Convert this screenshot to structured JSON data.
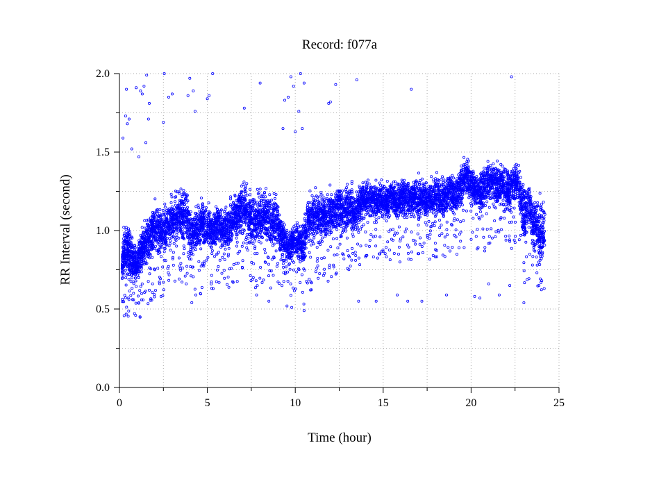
{
  "chart_data": {
    "type": "scatter",
    "title": "Record:  f077a",
    "xlabel": "Time (hour)",
    "ylabel": "RR Interval (second)",
    "xlim": [
      0,
      25
    ],
    "ylim": [
      0.0,
      2.0
    ],
    "x_ticks": [
      "0",
      "5",
      "10",
      "15",
      "20",
      "25"
    ],
    "y_ticks": [
      "0.0",
      "0.5",
      "1.0",
      "1.5",
      "2.0"
    ],
    "grid": true,
    "marker_color": "#0000ff",
    "series": [
      {
        "values": [
          [
            0.15,
            0.8,
            0.06
          ],
          [
            0.35,
            0.88,
            0.1
          ],
          [
            0.55,
            0.86,
            0.09
          ],
          [
            0.8,
            0.8,
            0.06
          ],
          [
            1.0,
            0.78,
            0.06
          ],
          [
            1.25,
            0.86,
            0.07
          ],
          [
            1.5,
            0.92,
            0.08
          ],
          [
            1.8,
            0.98,
            0.09
          ],
          [
            2.0,
            1.02,
            0.09
          ],
          [
            2.3,
            0.98,
            0.08
          ],
          [
            2.6,
            1.0,
            0.08
          ],
          [
            2.9,
            1.05,
            0.08
          ],
          [
            3.2,
            1.08,
            0.08
          ],
          [
            3.5,
            1.1,
            0.09
          ],
          [
            3.8,
            1.12,
            0.09
          ],
          [
            4.1,
            0.95,
            0.08
          ],
          [
            4.4,
            1.0,
            0.08
          ],
          [
            4.7,
            1.05,
            0.08
          ],
          [
            5.0,
            1.02,
            0.07
          ],
          [
            5.3,
            1.0,
            0.07
          ],
          [
            5.6,
            1.05,
            0.07
          ],
          [
            5.9,
            1.0,
            0.07
          ],
          [
            6.2,
            1.02,
            0.07
          ],
          [
            6.5,
            1.08,
            0.08
          ],
          [
            6.8,
            1.12,
            0.08
          ],
          [
            7.1,
            1.15,
            0.09
          ],
          [
            7.4,
            1.08,
            0.09
          ],
          [
            7.7,
            1.05,
            0.09
          ],
          [
            8.0,
            1.08,
            0.09
          ],
          [
            8.3,
            1.1,
            0.08
          ],
          [
            8.6,
            1.05,
            0.09
          ],
          [
            8.9,
            1.08,
            0.09
          ],
          [
            9.2,
            0.95,
            0.07
          ],
          [
            9.5,
            0.9,
            0.07
          ],
          [
            9.8,
            0.92,
            0.06
          ],
          [
            10.1,
            0.95,
            0.06
          ],
          [
            10.4,
            0.9,
            0.07
          ],
          [
            10.7,
            1.05,
            0.09
          ],
          [
            11.0,
            1.08,
            0.08
          ],
          [
            11.3,
            1.1,
            0.08
          ],
          [
            11.6,
            1.08,
            0.08
          ],
          [
            11.9,
            1.1,
            0.08
          ],
          [
            12.2,
            1.12,
            0.08
          ],
          [
            12.5,
            1.15,
            0.08
          ],
          [
            12.8,
            1.12,
            0.08
          ],
          [
            13.1,
            1.15,
            0.08
          ],
          [
            13.4,
            1.1,
            0.08
          ],
          [
            13.7,
            1.18,
            0.07
          ],
          [
            14.0,
            1.2,
            0.06
          ],
          [
            14.3,
            1.2,
            0.06
          ],
          [
            14.6,
            1.18,
            0.06
          ],
          [
            14.9,
            1.2,
            0.06
          ],
          [
            15.2,
            1.18,
            0.06
          ],
          [
            15.5,
            1.22,
            0.06
          ],
          [
            15.8,
            1.18,
            0.07
          ],
          [
            16.1,
            1.22,
            0.06
          ],
          [
            16.4,
            1.2,
            0.07
          ],
          [
            16.7,
            1.22,
            0.06
          ],
          [
            17.0,
            1.2,
            0.07
          ],
          [
            17.3,
            1.22,
            0.06
          ],
          [
            17.6,
            1.18,
            0.07
          ],
          [
            17.9,
            1.2,
            0.07
          ],
          [
            18.2,
            1.22,
            0.07
          ],
          [
            18.5,
            1.2,
            0.07
          ],
          [
            18.8,
            1.25,
            0.07
          ],
          [
            19.1,
            1.22,
            0.07
          ],
          [
            19.4,
            1.28,
            0.07
          ],
          [
            19.7,
            1.35,
            0.06
          ],
          [
            20.0,
            1.3,
            0.06
          ],
          [
            20.3,
            1.25,
            0.06
          ],
          [
            20.6,
            1.25,
            0.07
          ],
          [
            20.9,
            1.3,
            0.07
          ],
          [
            21.2,
            1.32,
            0.06
          ],
          [
            21.5,
            1.28,
            0.07
          ],
          [
            21.8,
            1.3,
            0.07
          ],
          [
            22.1,
            1.25,
            0.08
          ],
          [
            22.4,
            1.3,
            0.07
          ],
          [
            22.7,
            1.3,
            0.07
          ],
          [
            23.0,
            1.1,
            0.1
          ],
          [
            23.3,
            1.15,
            0.09
          ],
          [
            23.6,
            1.05,
            0.09
          ],
          [
            23.9,
            1.0,
            0.1
          ]
        ],
        "outliers": [
          [
            0.2,
            1.59
          ],
          [
            0.35,
            1.73
          ],
          [
            0.4,
            1.9
          ],
          [
            0.45,
            1.68
          ],
          [
            0.55,
            1.71
          ],
          [
            0.7,
            1.52
          ],
          [
            0.95,
            1.91
          ],
          [
            1.1,
            1.47
          ],
          [
            1.2,
            1.89
          ],
          [
            1.3,
            1.87
          ],
          [
            1.4,
            1.92
          ],
          [
            1.5,
            1.56
          ],
          [
            1.55,
            1.99
          ],
          [
            1.65,
            1.71
          ],
          [
            1.7,
            1.81
          ],
          [
            2.5,
            1.69
          ],
          [
            2.55,
            2.0
          ],
          [
            2.8,
            1.85
          ],
          [
            3.0,
            1.87
          ],
          [
            3.9,
            1.86
          ],
          [
            4.0,
            1.97
          ],
          [
            4.2,
            1.89
          ],
          [
            4.3,
            1.76
          ],
          [
            5.0,
            1.84
          ],
          [
            5.1,
            1.86
          ],
          [
            5.3,
            2.0
          ],
          [
            7.1,
            1.78
          ],
          [
            8.0,
            1.94
          ],
          [
            9.3,
            1.65
          ],
          [
            9.4,
            1.83
          ],
          [
            9.6,
            1.85
          ],
          [
            9.75,
            1.98
          ],
          [
            9.9,
            1.92
          ],
          [
            10.0,
            1.63
          ],
          [
            10.2,
            1.76
          ],
          [
            10.3,
            2.0
          ],
          [
            10.5,
            1.94
          ],
          [
            10.4,
            1.65
          ],
          [
            11.9,
            1.81
          ],
          [
            12.0,
            1.82
          ],
          [
            12.3,
            1.93
          ],
          [
            13.5,
            1.96
          ],
          [
            16.6,
            1.9
          ],
          [
            22.3,
            1.98
          ],
          [
            0.5,
            0.57
          ],
          [
            0.8,
            0.6
          ],
          [
            1.1,
            0.54
          ],
          [
            1.7,
            0.62
          ],
          [
            2.5,
            0.67
          ],
          [
            3.8,
            0.66
          ],
          [
            7.8,
            0.59
          ],
          [
            8.5,
            0.55
          ],
          [
            9.8,
            0.51
          ],
          [
            10.5,
            0.49
          ],
          [
            13.6,
            0.55
          ],
          [
            14.6,
            0.55
          ],
          [
            15.8,
            0.59
          ],
          [
            16.4,
            0.55
          ],
          [
            17.2,
            0.55
          ],
          [
            18.6,
            0.59
          ],
          [
            20.2,
            0.58
          ],
          [
            20.5,
            0.57
          ],
          [
            21.0,
            0.66
          ],
          [
            21.6,
            0.59
          ],
          [
            22.2,
            0.65
          ],
          [
            23.0,
            0.54
          ]
        ]
      }
    ]
  }
}
